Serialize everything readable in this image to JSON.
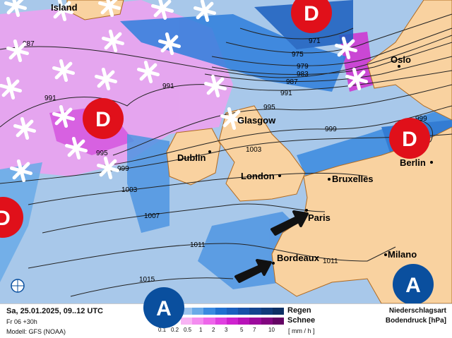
{
  "colors": {
    "sea": "#a8c8ea",
    "land": "#f9d2a0",
    "low": "#e0101a",
    "high": "#0a4f9e",
    "border": "#b06a20"
  },
  "isobars": [
    {
      "label": "987"
    },
    {
      "label": "971"
    },
    {
      "label": "975"
    },
    {
      "label": "979"
    },
    {
      "label": "983"
    },
    {
      "label": "987"
    },
    {
      "label": "991"
    },
    {
      "label": "991"
    },
    {
      "label": "991"
    },
    {
      "label": "995"
    },
    {
      "label": "999"
    },
    {
      "label": "995"
    },
    {
      "label": "999"
    },
    {
      "label": "1003"
    },
    {
      "label": "1003"
    },
    {
      "label": "1007"
    },
    {
      "label": "1011"
    },
    {
      "label": "1011"
    },
    {
      "label": "1015"
    },
    {
      "label": "999"
    }
  ],
  "cities": [
    {
      "name": "Island"
    },
    {
      "name": "Oslo"
    },
    {
      "name": "Glasgow"
    },
    {
      "name": "Dublin"
    },
    {
      "name": "London"
    },
    {
      "name": "Bruxelles"
    },
    {
      "name": "Berlin"
    },
    {
      "name": "Paris"
    },
    {
      "name": "Bordeaux"
    },
    {
      "name": "Milano"
    }
  ],
  "pressure_centers": [
    {
      "type": "low",
      "label": "D"
    },
    {
      "type": "low",
      "label": "D"
    },
    {
      "type": "low",
      "label": "D"
    },
    {
      "type": "low",
      "label": "D"
    },
    {
      "type": "high",
      "label": "A"
    },
    {
      "type": "high",
      "label": "A"
    }
  ],
  "footer": {
    "datetime": "Sa, 25.01.2025, 09..12 UTC",
    "run": "Fr 06 +30h",
    "model": "Modell: GFS (NOAA)",
    "rain_label": "Regen",
    "snow_label": "Schnee",
    "unit": "[ mm / h ]",
    "ticks": [
      "0.1",
      "0.2",
      "0.5",
      "1",
      "2",
      "3",
      "5",
      "7",
      "10"
    ],
    "rain_colors": [
      "#9cc4ee",
      "#6aaae8",
      "#3a8ae0",
      "#1f6fd0",
      "#1a5fbf",
      "#1650a8",
      "#13448f",
      "#103a7a",
      "#0d2f63"
    ],
    "snow_colors": [
      "#f8b4f4",
      "#f48cf0",
      "#ee66ea",
      "#e040e0",
      "#cf22cf",
      "#b812b8",
      "#9c0a9c",
      "#820680",
      "#650464"
    ],
    "type_title": "Niederschlagsart",
    "pressure_title": "Bodendruck [hPa]"
  }
}
